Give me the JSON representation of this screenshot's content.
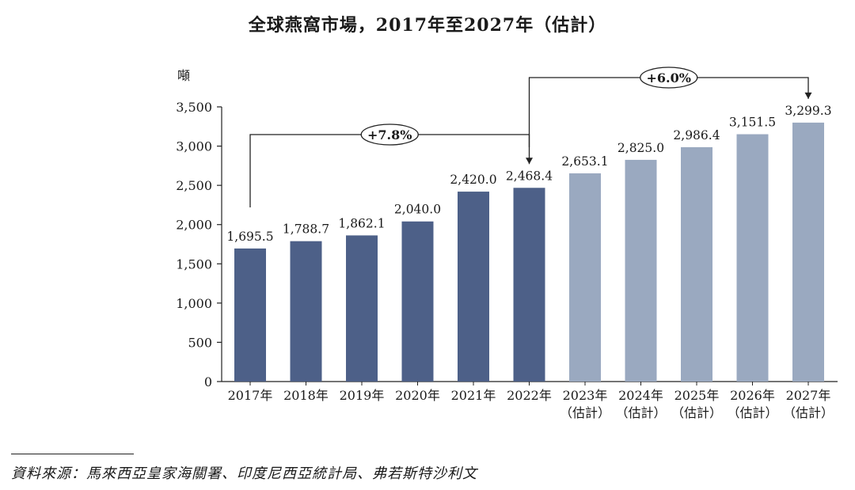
{
  "chart_data": {
    "type": "bar",
    "title": "全球燕窩市場，2017年至2027年（估計）",
    "ylabel": "噸",
    "ylim": [
      0,
      3500
    ],
    "yticks": [
      0,
      500,
      1000,
      1500,
      2000,
      2500,
      3000,
      3500
    ],
    "ytick_labels": [
      "0",
      "500",
      "1,000",
      "1,500",
      "2,000",
      "2,500",
      "3,000",
      "3,500"
    ],
    "categories": [
      "2017年",
      "2018年",
      "2019年",
      "2020年",
      "2021年",
      "2022年",
      "2023年",
      "2024年",
      "2025年",
      "2026年",
      "2027年"
    ],
    "category_sublabels": [
      "",
      "",
      "",
      "",
      "",
      "",
      "（估計）",
      "（估計）",
      "（估計）",
      "（估計）",
      "（估計）"
    ],
    "values": [
      1695.5,
      1788.7,
      1862.1,
      2040.0,
      2420.0,
      2468.4,
      2653.1,
      2825.0,
      2986.4,
      3151.5,
      3299.3
    ],
    "value_labels": [
      "1,695.5",
      "1,788.7",
      "1,862.1",
      "2,040.0",
      "2,420.0",
      "2,468.4",
      "2,653.1",
      "2,825.0",
      "2,986.4",
      "3,151.5",
      "3,299.3"
    ],
    "estimated": [
      false,
      false,
      false,
      false,
      false,
      false,
      true,
      true,
      true,
      true,
      true
    ],
    "colors": {
      "actual": "#4d6088",
      "estimated": "#9aa9c0"
    },
    "annotations": [
      {
        "label": "+7.8%",
        "from": "2017年",
        "to": "2022年"
      },
      {
        "label": "+6.0%",
        "from": "2022年",
        "to": "2027年"
      }
    ],
    "grid": false,
    "legend": "none"
  },
  "source_note": "資料來源：馬來西亞皇家海關署、印度尼西亞統計局、弗若斯特沙利文"
}
